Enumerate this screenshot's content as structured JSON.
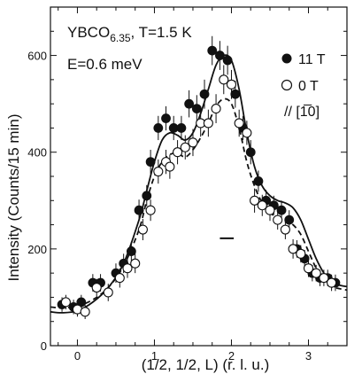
{
  "chart_data": {
    "type": "scatter",
    "xlabel": "(1/2, 1/2, L) (r. l. u.)",
    "ylabel": "Intensity (Counts/15 min)",
    "xlim": [
      -0.35,
      3.5
    ],
    "ylim": [
      0,
      700
    ],
    "x_ticks": [
      "0",
      "1",
      "2",
      "3"
    ],
    "y_ticks": [
      "0",
      "200",
      "400",
      "600"
    ],
    "annotations": {
      "sample_main": "YBCO",
      "sample_sub": "6.35",
      "sample_rest": ", T=1.5 K",
      "energy": "E=0.6 meV",
      "direction": "// [1̅0]"
    },
    "resolution_bar": {
      "x": [
        1.85,
        2.03
      ],
      "y": 222
    },
    "series": [
      {
        "name": "11 T",
        "marker": "filled-circle",
        "x": [
          -0.2,
          -0.05,
          0.05,
          0.2,
          0.3,
          0.5,
          0.6,
          0.7,
          0.8,
          0.9,
          0.95,
          1.05,
          1.15,
          1.25,
          1.35,
          1.45,
          1.55,
          1.65,
          1.75,
          1.85,
          1.95,
          2.05,
          2.15,
          2.25,
          2.35,
          2.45,
          2.55,
          2.65,
          2.75,
          2.85,
          2.95,
          3.05,
          3.15,
          3.25,
          3.35
        ],
        "y": [
          85,
          80,
          90,
          130,
          130,
          150,
          170,
          195,
          280,
          310,
          380,
          450,
          470,
          450,
          450,
          500,
          490,
          520,
          610,
          600,
          590,
          520,
          450,
          400,
          340,
          300,
          290,
          280,
          260,
          200,
          180,
          150,
          140,
          140,
          130
        ],
        "yerr": [
          15,
          15,
          15,
          18,
          18,
          20,
          20,
          20,
          22,
          22,
          25,
          25,
          25,
          25,
          25,
          28,
          28,
          30,
          30,
          30,
          30,
          28,
          25,
          25,
          22,
          22,
          20,
          20,
          20,
          18,
          18,
          17,
          17,
          17,
          17
        ]
      },
      {
        "name": "0 T",
        "marker": "open-circle",
        "x": [
          -0.15,
          0.0,
          0.1,
          0.25,
          0.4,
          0.55,
          0.65,
          0.75,
          0.85,
          0.95,
          1.05,
          1.15,
          1.2,
          1.3,
          1.4,
          1.5,
          1.6,
          1.7,
          1.8,
          1.9,
          2.0,
          2.1,
          2.2,
          2.3,
          2.4,
          2.5,
          2.6,
          2.7,
          2.8,
          2.9,
          3.0,
          3.1,
          3.2,
          3.3
        ],
        "y": [
          90,
          75,
          70,
          120,
          110,
          140,
          160,
          170,
          240,
          280,
          360,
          380,
          370,
          400,
          410,
          420,
          460,
          460,
          490,
          550,
          540,
          460,
          440,
          300,
          290,
          280,
          260,
          240,
          200,
          190,
          160,
          150,
          140,
          130
        ],
        "yerr": [
          15,
          15,
          15,
          18,
          18,
          20,
          20,
          20,
          22,
          22,
          25,
          25,
          25,
          25,
          25,
          28,
          28,
          28,
          30,
          30,
          30,
          28,
          25,
          25,
          22,
          22,
          20,
          20,
          20,
          18,
          18,
          17,
          17,
          17
        ]
      }
    ],
    "fit_lines": [
      {
        "style": "solid",
        "x": [
          -0.35,
          -0.2,
          0.0,
          0.2,
          0.4,
          0.6,
          0.8,
          0.9,
          1.0,
          1.1,
          1.2,
          1.3,
          1.4,
          1.5,
          1.6,
          1.7,
          1.8,
          1.9,
          2.0,
          2.1,
          2.2,
          2.3,
          2.4,
          2.5,
          2.6,
          2.7,
          2.8,
          2.9,
          3.0,
          3.1,
          3.2,
          3.3,
          3.4,
          3.5
        ],
        "y": [
          70,
          68,
          72,
          90,
          120,
          170,
          260,
          320,
          380,
          425,
          440,
          435,
          425,
          440,
          480,
          530,
          580,
          600,
          590,
          530,
          440,
          370,
          330,
          310,
          300,
          295,
          285,
          260,
          220,
          180,
          150,
          130,
          125,
          122
        ]
      },
      {
        "style": "dashed",
        "x": [
          -0.35,
          -0.2,
          0.0,
          0.2,
          0.4,
          0.6,
          0.8,
          0.9,
          1.0,
          1.1,
          1.2,
          1.3,
          1.4,
          1.5,
          1.6,
          1.7,
          1.8,
          1.9,
          2.0,
          2.1,
          2.2,
          2.3,
          2.4,
          2.5,
          2.6,
          2.7,
          2.8,
          2.9,
          3.0,
          3.1,
          3.2,
          3.3,
          3.4,
          3.5
        ],
        "y": [
          80,
          78,
          82,
          95,
          120,
          165,
          240,
          300,
          350,
          380,
          395,
          398,
          390,
          405,
          430,
          460,
          495,
          510,
          500,
          450,
          380,
          330,
          295,
          275,
          265,
          260,
          250,
          230,
          195,
          160,
          135,
          122,
          118,
          115
        ]
      }
    ]
  }
}
